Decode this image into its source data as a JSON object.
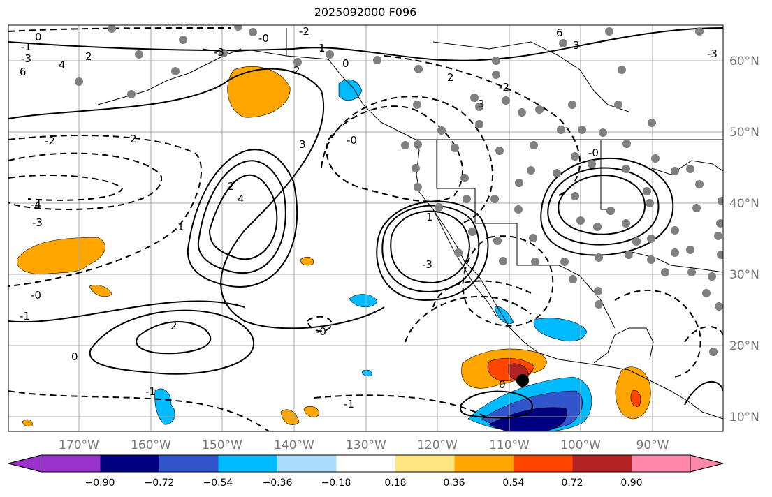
{
  "title": "2025092000 F096",
  "map": {
    "lon_range": [
      -180,
      -80
    ],
    "lat_range": [
      8,
      66
    ],
    "lon_ticks": [
      "170°W",
      "160°W",
      "150°W",
      "140°W",
      "130°W",
      "120°W",
      "110°W",
      "100°W",
      "90°W"
    ],
    "lat_ticks": [
      "60°N",
      "50°N",
      "40°N",
      "30°N",
      "20°N",
      "10°N"
    ],
    "contour_labels": [
      "0",
      "-1",
      "-3",
      "6",
      "4",
      "2",
      "-2",
      "-4",
      "-3",
      "-0",
      "-1",
      "2",
      "4",
      "3",
      "2",
      "1",
      "-2",
      "-3",
      "-0",
      "1",
      "2",
      "-0",
      "-1",
      "2",
      "3",
      "-3",
      "6",
      "3",
      "-2",
      "-3",
      "2",
      "0",
      "1",
      "0",
      "-0",
      "-1",
      "-0",
      "0"
    ]
  },
  "colorbar": {
    "labels": [
      "−0.90",
      "−0.72",
      "−0.54",
      "−0.36",
      "−0.18",
      "0.18",
      "0.36",
      "0.54",
      "0.72",
      "0.90"
    ],
    "colors": [
      "#9933cc",
      "#000080",
      "#3355cc",
      "#00bbff",
      "#aaddff",
      "#ffffff",
      "#ffe680",
      "#ffa500",
      "#ff4500",
      "#b22222",
      "#ff88aa"
    ]
  },
  "colors": {
    "orange": "#ffa500",
    "red": "#ff4500",
    "darkred": "#b22222",
    "cyan": "#00bbff",
    "blue": "#3355cc",
    "navy": "#000080",
    "station": "#808080"
  }
}
